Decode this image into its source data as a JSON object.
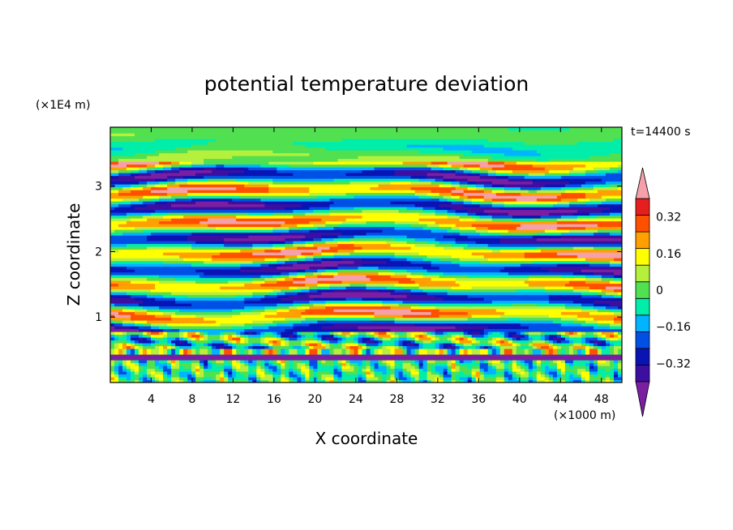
{
  "chart_data": {
    "type": "heatmap",
    "title": "potential temperature deviation",
    "xlabel": "X coordinate",
    "ylabel": "Z coordinate",
    "x_unit": "(×1000 m)",
    "y_unit": "(×1E4 m)",
    "time_label": "t=14400 s",
    "xlim": [
      0,
      50
    ],
    "ylim": [
      0,
      3.9
    ],
    "x_ticks": [
      4,
      8,
      12,
      16,
      20,
      24,
      28,
      32,
      36,
      40,
      44,
      48
    ],
    "y_ticks": [
      1,
      2,
      3
    ],
    "colorbar": {
      "levels": [
        -0.4,
        -0.32,
        -0.24,
        -0.16,
        -0.08,
        0,
        0.08,
        0.16,
        0.24,
        0.32,
        0.4
      ],
      "labels": [
        "0.32",
        "0.16",
        "0",
        "−0.16",
        "−0.32"
      ],
      "label_values": [
        0.32,
        0.16,
        0,
        -0.16,
        -0.32
      ],
      "colors": [
        "#7a1fa2",
        "#3c0fa0",
        "#0a14b4",
        "#0050e6",
        "#00b4ff",
        "#00eeaa",
        "#50e050",
        "#b4f03c",
        "#ffff00",
        "#ffa000",
        "#ff5000",
        "#e61e1e",
        "#f5a0aa"
      ],
      "extend": "both"
    }
  }
}
